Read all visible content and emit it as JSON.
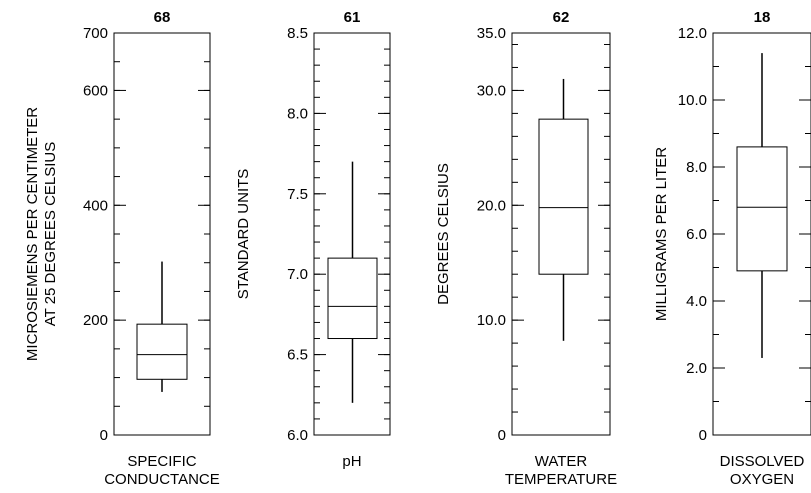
{
  "chart_data": [
    {
      "type": "box",
      "count": "68",
      "xlabel": [
        "SPECIFIC",
        "CONDUCTANCE"
      ],
      "ylabel": [
        "MICROSIEMENS PER CENTIMETER",
        "AT 25 DEGREES CELSIUS"
      ],
      "ylim": [
        0,
        700
      ],
      "yticks": [
        {
          "value": 0,
          "label": "0"
        },
        {
          "value": 200,
          "label": "200"
        },
        {
          "value": 400,
          "label": "400"
        },
        {
          "value": 600,
          "label": "600"
        },
        {
          "value": 700,
          "label": "700"
        }
      ],
      "minor_step": 50,
      "box": {
        "min": 75,
        "q1": 97,
        "median": 140,
        "q3": 193,
        "max": 302
      }
    },
    {
      "type": "box",
      "count": "61",
      "xlabel": [
        "pH"
      ],
      "ylabel": [
        "STANDARD UNITS"
      ],
      "ylim": [
        6.0,
        8.5
      ],
      "yticks": [
        {
          "value": 6.0,
          "label": "6.0"
        },
        {
          "value": 6.5,
          "label": "6.5"
        },
        {
          "value": 7.0,
          "label": "7.0"
        },
        {
          "value": 7.5,
          "label": "7.5"
        },
        {
          "value": 8.0,
          "label": "8.0"
        },
        {
          "value": 8.5,
          "label": "8.5"
        }
      ],
      "minor_step": 0.1,
      "box": {
        "min": 6.2,
        "q1": 6.6,
        "median": 6.8,
        "q3": 7.1,
        "max": 7.7
      }
    },
    {
      "type": "box",
      "count": "62",
      "xlabel": [
        "WATER",
        "TEMPERATURE"
      ],
      "ylabel": [
        "DEGREES CELSIUS"
      ],
      "ylim": [
        0,
        35
      ],
      "yticks": [
        {
          "value": 0,
          "label": "0"
        },
        {
          "value": 10,
          "label": "10.0"
        },
        {
          "value": 20,
          "label": "20.0"
        },
        {
          "value": 30,
          "label": "30.0"
        },
        {
          "value": 35,
          "label": "35.0"
        }
      ],
      "minor_step": 2,
      "box": {
        "min": 8.2,
        "q1": 14,
        "median": 19.8,
        "q3": 27.5,
        "max": 31
      }
    },
    {
      "type": "box",
      "count": "18",
      "xlabel": [
        "DISSOLVED",
        "OXYGEN"
      ],
      "ylabel": [
        "MILLIGRAMS PER LITER"
      ],
      "ylim": [
        0,
        12
      ],
      "yticks": [
        {
          "value": 0,
          "label": "0"
        },
        {
          "value": 2,
          "label": "2.0"
        },
        {
          "value": 4,
          "label": "4.0"
        },
        {
          "value": 6,
          "label": "6.0"
        },
        {
          "value": 8,
          "label": "8.0"
        },
        {
          "value": 10,
          "label": "10.0"
        },
        {
          "value": 12,
          "label": "12.0"
        }
      ],
      "minor_step": 1,
      "box": {
        "min": 2.3,
        "q1": 4.9,
        "median": 6.8,
        "q3": 8.6,
        "max": 11.4
      }
    }
  ]
}
